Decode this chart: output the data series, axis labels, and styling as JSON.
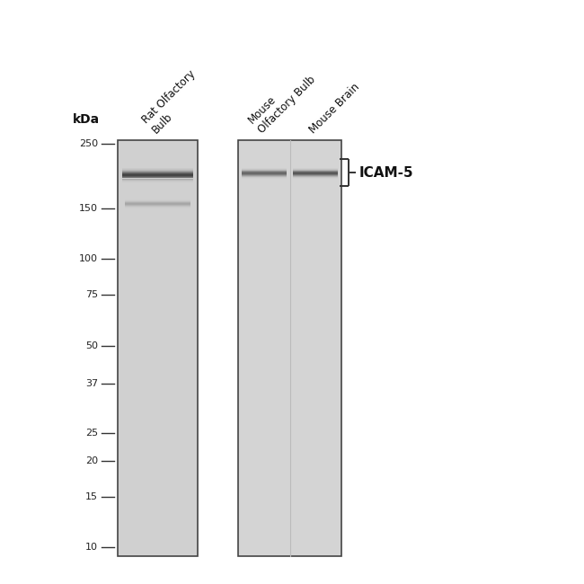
{
  "background_color": "#ffffff",
  "figure_size": [
    6.5,
    6.5
  ],
  "dpi": 100,
  "gel1_color": "#d0d0d0",
  "gel2_color": "#d4d4d4",
  "gel_border_color": "#444444",
  "kda_label": "kDa",
  "marker_labels": [
    250,
    150,
    100,
    75,
    50,
    37,
    25,
    20,
    15,
    10
  ],
  "lane_header_1": "Rat Olfactory\nBulb",
  "lane_header_2": "Mouse\nOlfactory Bulb",
  "lane_header_3": "Mouse Brain",
  "icam5_label": "ICAM-5",
  "band_color": "#3a3a3a",
  "band_smear_color": "#787878"
}
